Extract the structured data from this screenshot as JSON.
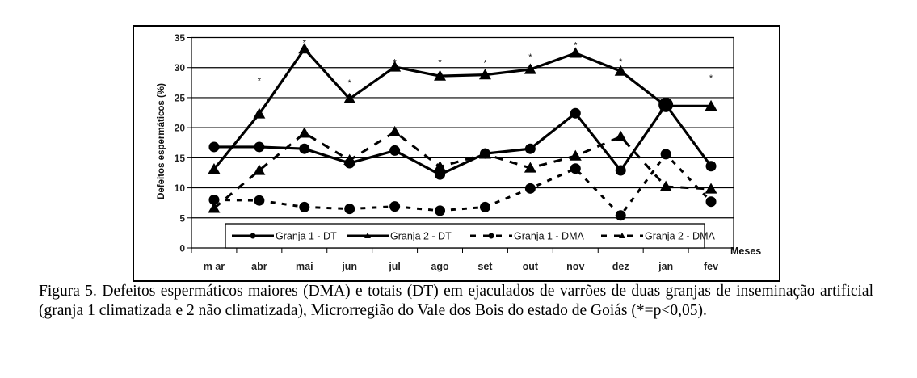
{
  "chart_data": {
    "type": "line",
    "title": "",
    "xlabel": "Meses",
    "ylabel": "Defeitos espermáticos (%)",
    "ylim": [
      0,
      35
    ],
    "yticks": [
      0,
      5,
      10,
      15,
      20,
      25,
      30,
      35
    ],
    "grid": true,
    "legend_position": "bottom-inside",
    "categories": [
      "m ar",
      "abr",
      "mai",
      "jun",
      "jul",
      "ago",
      "set",
      "out",
      "nov",
      "dez",
      "jan",
      "fev"
    ],
    "series": [
      {
        "name": "Granja 1 - DT",
        "style": "solid",
        "marker": "circle",
        "values": [
          16.8,
          16.8,
          16.5,
          14.1,
          16.2,
          12.2,
          15.7,
          16.5,
          22.4,
          12.9,
          23.8,
          13.6
        ]
      },
      {
        "name": "Granja 2 - DT",
        "style": "solid",
        "marker": "triangle",
        "values": [
          13.1,
          22.3,
          33.1,
          24.8,
          30.1,
          28.6,
          28.8,
          29.7,
          32.4,
          29.4,
          23.6,
          23.6
        ]
      },
      {
        "name": "Granja 1 - DMA",
        "style": "dashed",
        "marker": "circle",
        "values": [
          8.0,
          7.9,
          6.8,
          6.5,
          6.9,
          6.2,
          6.8,
          9.9,
          13.2,
          5.4,
          15.6,
          7.7
        ]
      },
      {
        "name": "Granja 2 - DMA",
        "style": "dashed",
        "marker": "triangle",
        "values": [
          6.6,
          12.9,
          19.1,
          14.6,
          19.3,
          13.5,
          15.6,
          13.3,
          15.3,
          18.5,
          10.2,
          9.8
        ]
      }
    ],
    "significance_marker": "*",
    "significance": [
      {
        "category": "abr",
        "y": 28.0
      },
      {
        "category": "mai",
        "y": 34.3
      },
      {
        "category": "jun",
        "y": 27.7
      },
      {
        "category": "jul",
        "y": 31.1
      },
      {
        "category": "ago",
        "y": 31.1
      },
      {
        "category": "set",
        "y": 31.0
      },
      {
        "category": "out",
        "y": 32.0
      },
      {
        "category": "nov",
        "y": 33.9
      },
      {
        "category": "dez",
        "y": 31.2
      },
      {
        "category": "fev",
        "y": 28.5
      }
    ]
  },
  "caption": "Figura 5. Defeitos espermáticos maiores (DMA) e totais (DT) em ejaculados de varrões de duas granjas de inseminação artificial (granja 1 climatizada e 2 não climatizada), Microrregião do Vale dos Bois do estado de Goiás (*=p<0,05)."
}
